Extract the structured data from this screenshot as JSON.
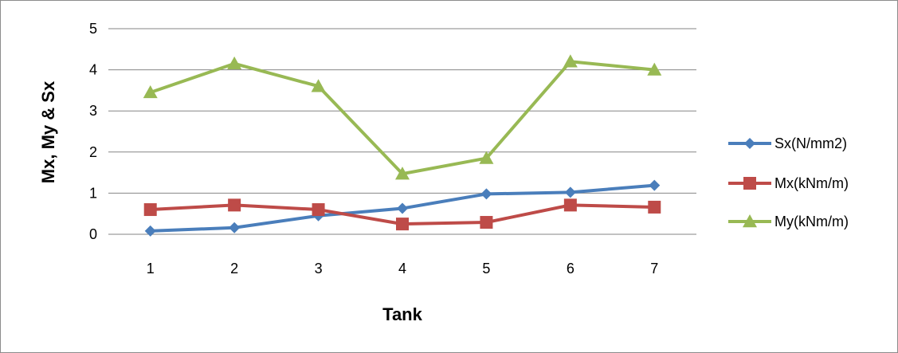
{
  "chart_data": {
    "type": "line",
    "title": "",
    "xlabel": "Tank",
    "ylabel": "Mx, My & Sx",
    "categories": [
      "1",
      "2",
      "3",
      "4",
      "5",
      "6",
      "7"
    ],
    "ylim": [
      0,
      5
    ],
    "yticks": [
      "0",
      "1",
      "2",
      "3",
      "4",
      "5"
    ],
    "grid": true,
    "legend_position": "right",
    "series": [
      {
        "name": "Sx(N/mm2)",
        "color": "#4a7ebb",
        "marker": "diamond",
        "values": [
          0.08,
          0.16,
          0.45,
          0.63,
          0.98,
          1.02,
          1.19
        ]
      },
      {
        "name": "Mx(kNm/m)",
        "color": "#be4b48",
        "marker": "square",
        "values": [
          0.6,
          0.71,
          0.6,
          0.25,
          0.29,
          0.71,
          0.66
        ]
      },
      {
        "name": "My(kNm/m)",
        "color": "#98b954",
        "marker": "triangle",
        "values": [
          3.45,
          4.15,
          3.6,
          1.47,
          1.85,
          4.2,
          4.0
        ]
      }
    ]
  }
}
